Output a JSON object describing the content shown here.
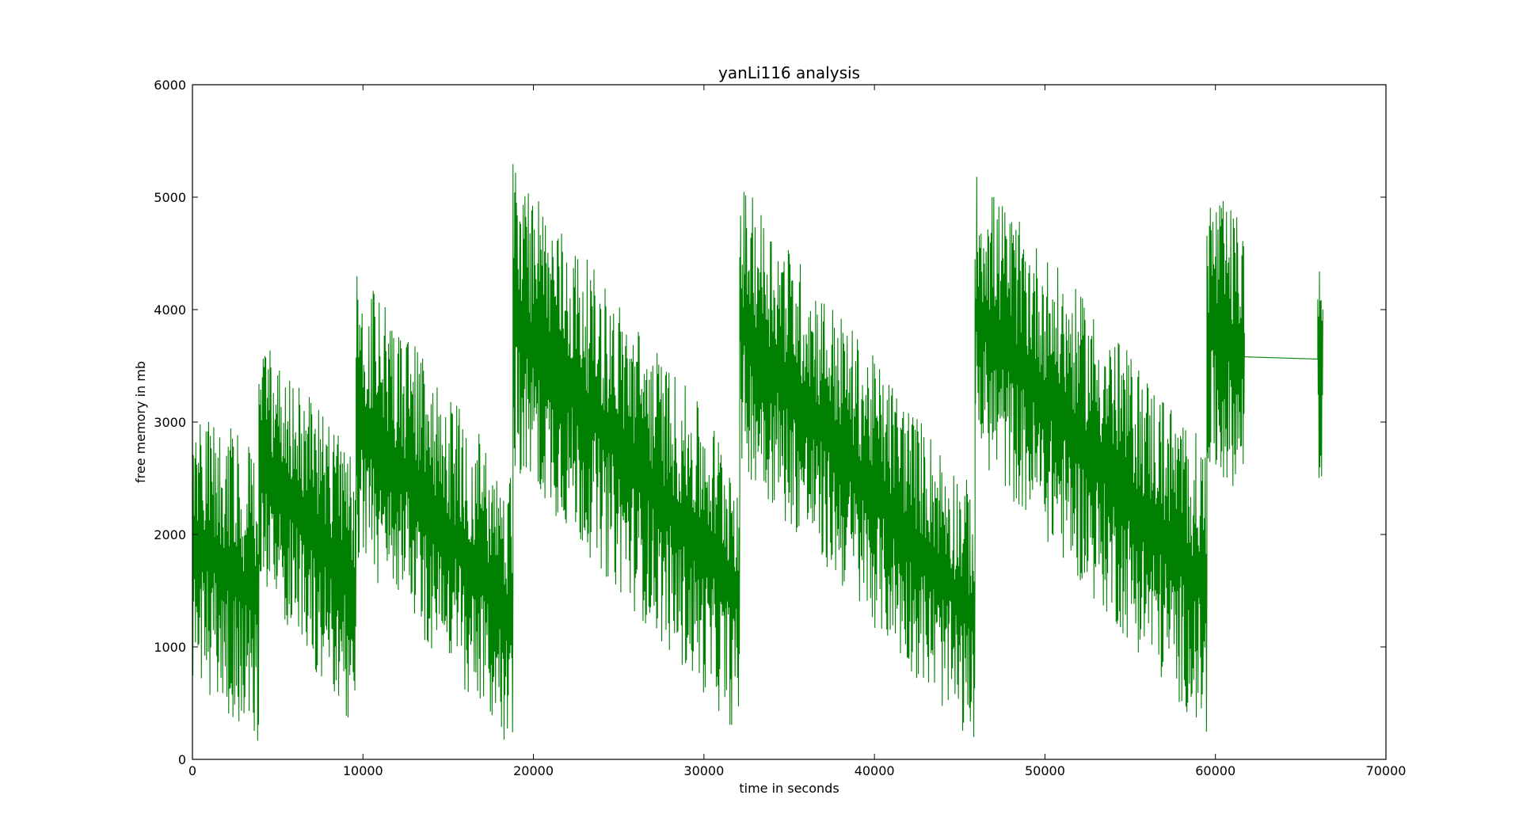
{
  "chart_data": {
    "type": "line",
    "title": "yanLi116 analysis",
    "xlabel": "time in seconds",
    "ylabel": "free memory in mb",
    "xlim": [
      0,
      70000
    ],
    "ylim": [
      0,
      6000
    ],
    "x_ticks": [
      0,
      10000,
      20000,
      30000,
      40000,
      50000,
      60000,
      70000
    ],
    "y_ticks": [
      0,
      1000,
      2000,
      3000,
      4000,
      5000,
      6000
    ],
    "x_tick_labels": [
      "0",
      "10000",
      "20000",
      "30000",
      "40000",
      "50000",
      "60000",
      "70000"
    ],
    "y_tick_labels": [
      "0",
      "1000",
      "2000",
      "3000",
      "4000",
      "5000",
      "6000"
    ],
    "grid": false,
    "legend": "none",
    "series": [
      {
        "color": "#008000",
        "segments": [
          {
            "x_start": 0,
            "x_end": 3900,
            "upper_start": 3300,
            "upper_end": 2700,
            "lower_start": 700,
            "lower_end": 100
          },
          {
            "x_start": 3900,
            "x_end": 9600,
            "upper_start": 3800,
            "upper_end": 2700,
            "lower_start": 1500,
            "lower_end": 250
          },
          {
            "x_start": 9600,
            "x_end": 18800,
            "upper_start": 4400,
            "upper_end": 2500,
            "lower_start": 1800,
            "lower_end": 50
          },
          {
            "x_start": 18800,
            "x_end": 32100,
            "upper_start": 5300,
            "upper_end": 2700,
            "lower_start": 2600,
            "lower_end": 200
          },
          {
            "x_start": 32100,
            "x_end": 45900,
            "upper_start": 5150,
            "upper_end": 2400,
            "lower_start": 2600,
            "lower_end": 100
          },
          {
            "x_start": 45900,
            "x_end": 59500,
            "upper_start": 5250,
            "upper_end": 2800,
            "lower_start": 2700,
            "lower_end": 200
          },
          {
            "x_start": 59500,
            "x_end": 61700,
            "upper_start": 5100,
            "upper_end": 4800,
            "lower_start": 2500,
            "lower_end": 2400
          },
          {
            "x_start": 61700,
            "x_end": 66000,
            "upper_start": 3580,
            "upper_end": 3560,
            "lower_start": 3580,
            "lower_end": 3560
          },
          {
            "x_start": 66000,
            "x_end": 66300,
            "upper_start": 4700,
            "upper_end": 4600,
            "lower_start": 2200,
            "lower_end": 2150
          }
        ]
      }
    ]
  }
}
